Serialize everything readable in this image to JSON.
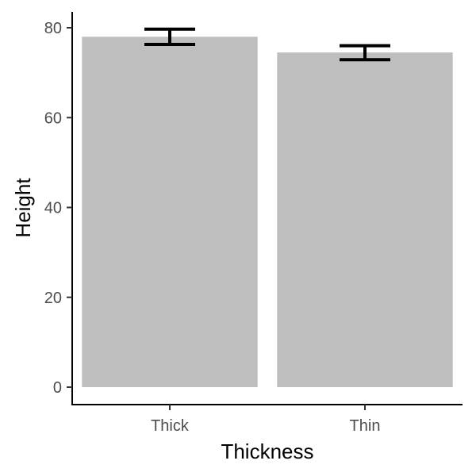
{
  "chart_data": {
    "type": "bar",
    "title": "",
    "xlabel": "Thickness",
    "ylabel": "Height",
    "categories": [
      "Thick",
      "Thin"
    ],
    "values": [
      78,
      74.5
    ],
    "error_bars": [
      {
        "low": 76.3,
        "high": 79.7
      },
      {
        "low": 72.9,
        "high": 76.0
      }
    ],
    "ylim": [
      0,
      82
    ],
    "yticks": [
      0,
      20,
      40,
      60,
      80
    ],
    "grid": false,
    "bar_color": "#bebebe",
    "error_bar_color": "#000000"
  }
}
